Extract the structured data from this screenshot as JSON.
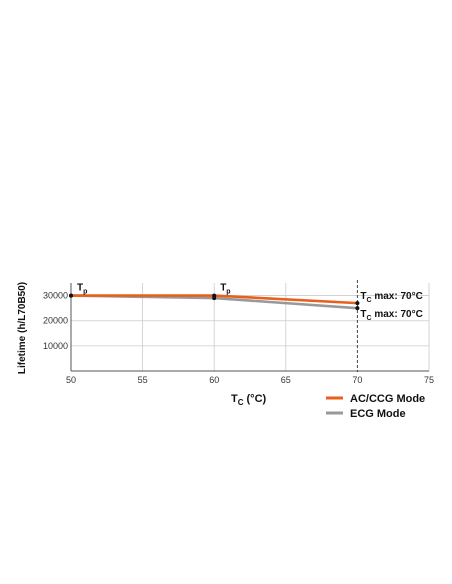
{
  "chart_data": {
    "type": "line",
    "xlabel": "T",
    "xlabel_sub": "C",
    "xlabel_unit": "(°C)",
    "ylabel": "Lifetime (h/L70B50)",
    "xlim": [
      50,
      75
    ],
    "ylim": [
      0,
      35000
    ],
    "x_ticks": [
      50,
      55,
      60,
      65,
      70,
      75
    ],
    "y_ticks": [
      10000,
      20000,
      30000
    ],
    "grid": true,
    "series": [
      {
        "name": "AC/CCG Mode",
        "color": "#e8601c",
        "x": [
          50,
          60,
          70
        ],
        "y": [
          30000,
          30000,
          27000
        ]
      },
      {
        "name": "ECG Mode",
        "color": "#999999",
        "x": [
          50,
          60,
          70
        ],
        "y": [
          30000,
          29000,
          25000
        ]
      }
    ],
    "annotations": [
      {
        "text": "T",
        "sub": "p",
        "x": 50,
        "y": 30000
      },
      {
        "text": "T",
        "sub": "p",
        "x": 60,
        "y": 30000
      },
      {
        "text": "T",
        "sub": "C",
        "suffix": " max: 70°C",
        "x": 70,
        "y": 27000
      },
      {
        "text": "T",
        "sub": "C",
        "suffix": " max: 70°C",
        "x": 70,
        "y": 25000
      }
    ],
    "reference_line_x": 70,
    "legend_position": "bottom-right"
  }
}
